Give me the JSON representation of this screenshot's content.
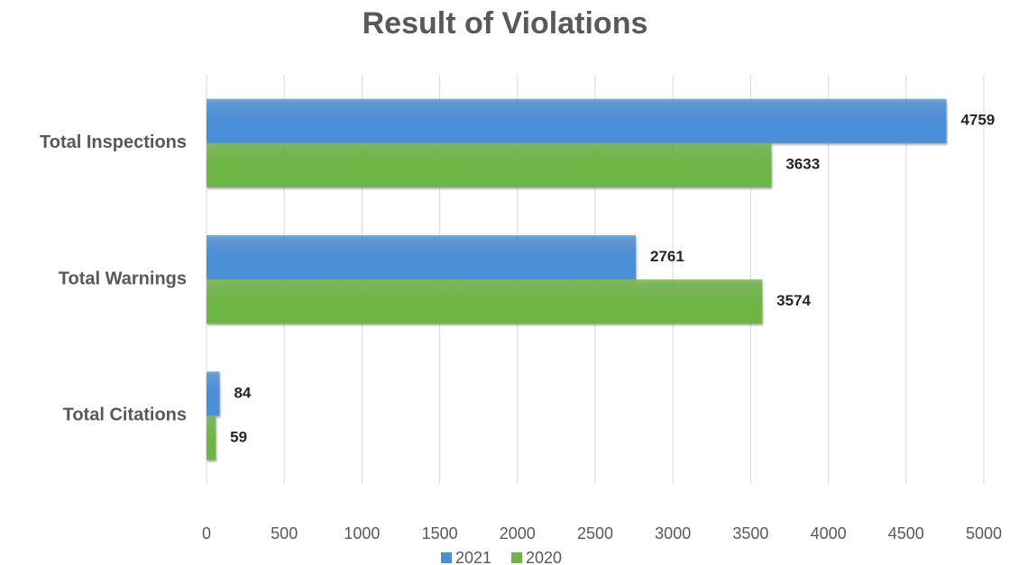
{
  "chart_data": {
    "type": "barh",
    "title": "Result of Violations",
    "categories": [
      "Total Inspections",
      "Total Warnings",
      "Total Citations"
    ],
    "series": [
      {
        "name": "2021",
        "color": "#4a8fd8",
        "values": [
          4759,
          2761,
          84
        ]
      },
      {
        "name": "2020",
        "color": "#6db545",
        "values": [
          3633,
          3574,
          59
        ]
      }
    ],
    "xlim": [
      0,
      5000
    ],
    "xticks": [
      0,
      500,
      1000,
      1500,
      2000,
      2500,
      3000,
      3500,
      4000,
      4500,
      5000
    ],
    "grid": true,
    "legend": "bottom"
  }
}
